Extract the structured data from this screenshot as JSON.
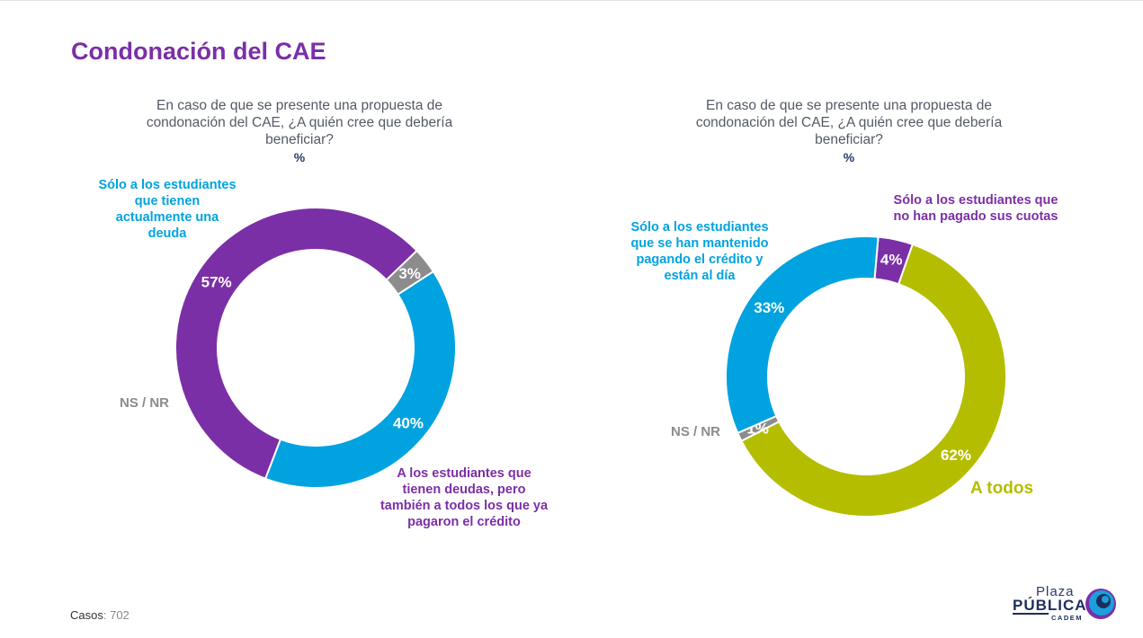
{
  "page": {
    "title": "Condonación del CAE",
    "cases_label": "Casos",
    "cases_value": ": 702"
  },
  "logo": {
    "line1": "Plaza",
    "line2": "PÚBLICA",
    "line3": "CADEM",
    "colors": {
      "navy": "#1f2d5c",
      "blue": "#1aa0dd",
      "purple": "#7b2fa6"
    }
  },
  "chart_data": [
    {
      "type": "pie",
      "donut": true,
      "question": "En caso de que se presente una propuesta de condonación del CAE, ¿A quién cree que debería beneficiar?",
      "unit": "%",
      "slices": [
        {
          "label": "Sólo a los estudiantes que tienen actualmente una deuda",
          "value": 40,
          "display": "40%",
          "color": "#00a3e0"
        },
        {
          "label": "A los estudiantes que tienen deudas, pero también a todos los que ya pagaron el crédito",
          "value": 57,
          "display": "57%",
          "color": "#7b2fa6"
        },
        {
          "label": "NS / NR",
          "value": 3,
          "display": "3%",
          "color": "#8c8c8c"
        }
      ]
    },
    {
      "type": "pie",
      "donut": true,
      "question": "En caso de que se presente una propuesta de condonación del CAE, ¿A quién cree que debería beneficiar?",
      "unit": "%",
      "slices": [
        {
          "label": "Sólo a los estudiantes que no han pagado sus cuotas",
          "value": 4,
          "display": "4%",
          "color": "#7b2fa6"
        },
        {
          "label": "A todos",
          "value": 62,
          "display": "62%",
          "color": "#b5bd00"
        },
        {
          "label": "NS / NR",
          "value": 1,
          "display": "1%",
          "color": "#8c8c8c"
        },
        {
          "label": "Sólo a los estudiantes que se han mantenido pagando el crédito y están al día",
          "value": 33,
          "display": "33%",
          "color": "#00a3e0"
        }
      ]
    }
  ]
}
